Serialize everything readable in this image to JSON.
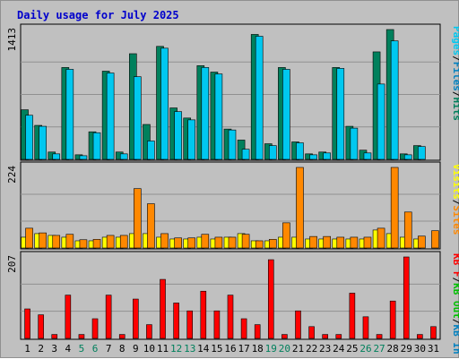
{
  "chart_data": {
    "type": "bar",
    "title": "Daily usage for July 2025",
    "colors": {
      "hits": "#00805c",
      "files": "#00c8f0",
      "pages": "#00e8f8",
      "visits": "#ffff00",
      "sites": "#ff8800",
      "kb_in": "#0080c0",
      "kb_out": "#00c000",
      "kb_f": "#ff0000",
      "weekend": "#00805c",
      "title": "#0000cc",
      "text": "#000000",
      "panel": "#c0c0c0"
    },
    "days": [
      "1",
      "2",
      "3",
      "4",
      "5",
      "6",
      "7",
      "8",
      "9",
      "10",
      "11",
      "12",
      "13",
      "14",
      "15",
      "16",
      "17",
      "18",
      "19",
      "20",
      "21",
      "22",
      "23",
      "24",
      "25",
      "26",
      "27",
      "28",
      "29",
      "30",
      "31"
    ],
    "weekend_days": [
      "5",
      "6",
      "12",
      "13",
      "19",
      "20",
      "26",
      "27"
    ],
    "panels": [
      {
        "max_label": "1413",
        "ymax": 1413,
        "legend": [
          {
            "text": "Pages",
            "color": "#00c8f0"
          },
          {
            "text": "/",
            "color": "#000000"
          },
          {
            "text": "Files",
            "color": "#0080c0"
          },
          {
            "text": "/",
            "color": "#000000"
          },
          {
            "text": "Hits",
            "color": "#00805c"
          }
        ],
        "series": [
          {
            "name": "Hits",
            "color": "#00805c",
            "values": [
              540,
              370,
              80,
              1000,
              50,
              300,
              960,
              80,
              1150,
              380,
              1230,
              560,
              450,
              1020,
              950,
              330,
              210,
              1360,
              170,
              1000,
              190,
              60,
              80,
              1000,
              360,
              100,
              1170,
              1413,
              60,
              150,
              0
            ]
          },
          {
            "name": "Files",
            "color": "#00c8f0",
            "values": [
              480,
              360,
              60,
              980,
              40,
              290,
              940,
              60,
              900,
              200,
              1210,
              520,
              430,
              1000,
              930,
              320,
              110,
              1340,
              150,
              980,
              180,
              50,
              70,
              990,
              340,
              70,
              820,
              1290,
              50,
              140,
              0
            ]
          }
        ]
      },
      {
        "max_label": "224",
        "ymax": 224,
        "legend": [
          {
            "text": "Visits",
            "color": "#ffff00"
          },
          {
            "text": "/",
            "color": "#000000"
          },
          {
            "text": "Sites",
            "color": "#ff8800"
          }
        ],
        "series": [
          {
            "name": "Visits",
            "color": "#ffff00",
            "values": [
              30,
              40,
              35,
              30,
              20,
              20,
              30,
              30,
              40,
              40,
              30,
              25,
              25,
              30,
              25,
              30,
              40,
              20,
              20,
              30,
              30,
              25,
              25,
              25,
              25,
              25,
              50,
              40,
              30,
              25,
              0
            ]
          },
          {
            "name": "Sites",
            "color": "#ff8800",
            "values": [
              55,
              42,
              35,
              38,
              23,
              24,
              35,
              35,
              165,
              123,
              40,
              28,
              28,
              38,
              30,
              30,
              38,
              20,
              24,
              70,
              224,
              32,
              32,
              30,
              30,
              30,
              55,
              224,
              100,
              33,
              48
            ]
          }
        ]
      },
      {
        "max_label": "207",
        "ymax": 207,
        "legend": [
          {
            "text": "KB F",
            "color": "#ff0000"
          },
          {
            "text": "/",
            "color": "#000000"
          },
          {
            "text": "KB Out",
            "color": "#00c000"
          },
          {
            "text": "/",
            "color": "#000000"
          },
          {
            "text": "KB In",
            "color": "#0080c0"
          }
        ],
        "series": [
          {
            "name": "KB F",
            "color": "#ff0000",
            "values": [
              75,
              60,
              10,
              110,
              10,
              50,
              110,
              10,
              100,
              35,
              150,
              90,
              70,
              120,
              70,
              110,
              50,
              35,
              200,
              10,
              70,
              30,
              10,
              10,
              115,
              55,
              10,
              95,
              207,
              10,
              30
            ]
          }
        ]
      }
    ]
  }
}
